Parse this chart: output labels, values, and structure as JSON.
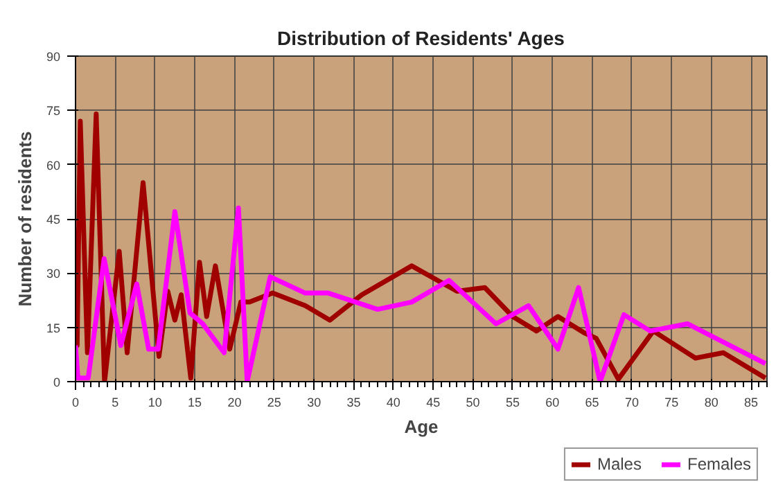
{
  "chart_data": {
    "type": "line",
    "title": "Distribution of Residents' Ages",
    "xlabel": "Age",
    "ylabel": "Number of residents",
    "xlim": [
      0,
      87
    ],
    "ylim": [
      0,
      90
    ],
    "xticks": [
      0,
      5,
      10,
      15,
      20,
      25,
      30,
      35,
      40,
      45,
      50,
      55,
      60,
      65,
      70,
      75,
      80,
      85
    ],
    "yticks": [
      0,
      15,
      30,
      45,
      60,
      75,
      90
    ],
    "grid": true,
    "legend": "bottom right",
    "marker": "none",
    "line_style": "solid",
    "series": [
      {
        "name": "Males",
        "color": "#a00000",
        "x": [
          0,
          0.2,
          0.6,
          1.5,
          2.6,
          3.65,
          5.5,
          6.5,
          8.5,
          10.5,
          11.6,
          12.5,
          13.3,
          14.5,
          15.6,
          16.5,
          17.6,
          19.4,
          20.8,
          21.9,
          24.8,
          28.9,
          32,
          36,
          42.3,
          48,
          51.5,
          55,
          58,
          60.7,
          64,
          65.5,
          68.3,
          72.7,
          78,
          81.5,
          86.8
        ],
        "values": [
          42,
          10,
          72,
          8,
          74,
          0,
          36,
          8,
          55,
          7,
          25,
          17,
          24,
          1,
          33,
          18,
          32,
          9,
          22,
          22,
          24.5,
          21,
          17,
          24,
          32,
          25,
          26,
          18,
          14,
          18,
          13.5,
          12,
          0.7,
          14,
          6.5,
          8,
          1
        ]
      },
      {
        "name": "Females",
        "color": "#ff00ff",
        "x": [
          0,
          0.3,
          1.6,
          3.6,
          5.7,
          7.7,
          9.2,
          10.4,
          12.5,
          14.4,
          16,
          18.7,
          20.5,
          21.6,
          24.5,
          28.9,
          31.8,
          38,
          42.3,
          47,
          52.9,
          57,
          60.7,
          63.3,
          66,
          69,
          72.3,
          77,
          86.8
        ],
        "values": [
          10,
          1,
          1,
          34,
          10,
          27,
          9,
          9,
          47,
          19,
          16,
          8,
          48,
          0,
          29,
          24.5,
          24.5,
          20,
          22,
          28,
          16,
          21,
          9,
          26,
          0,
          18.5,
          14,
          16,
          5
        ]
      }
    ]
  }
}
